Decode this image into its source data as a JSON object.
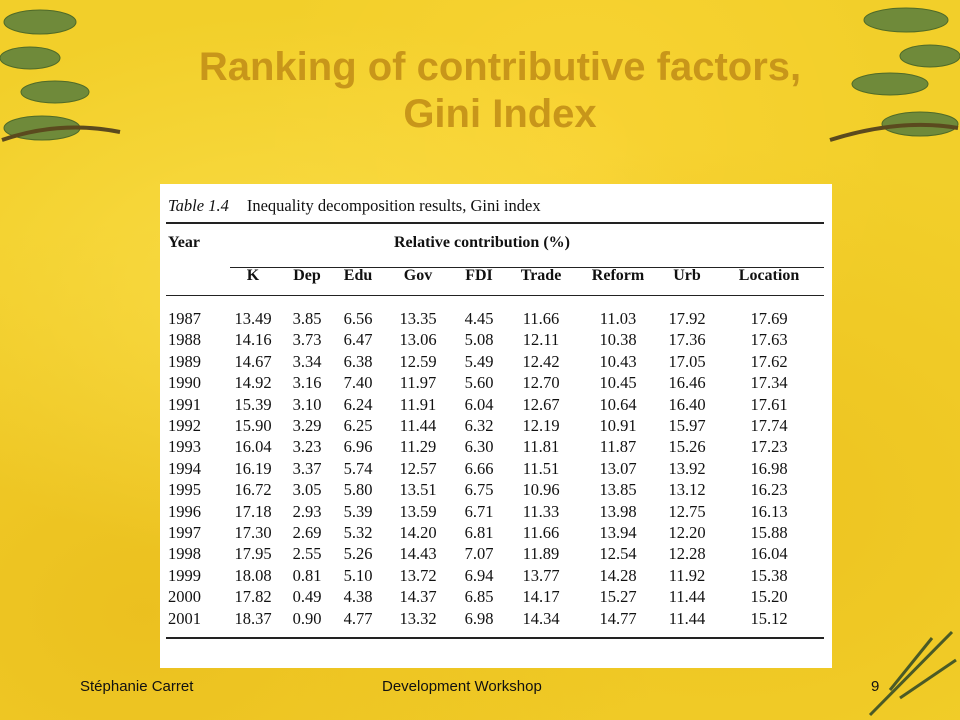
{
  "slide": {
    "title_line1": "Ranking of contributive factors,",
    "title_line2": "Gini Index"
  },
  "table": {
    "caption_number": "Table 1.4",
    "caption_text": "Inequality decomposition results, Gini index",
    "year_header": "Year",
    "group_header": "Relative contribution (%)",
    "columns": [
      "K",
      "Dep",
      "Edu",
      "Gov",
      "FDI",
      "Trade",
      "Reform",
      "Urb",
      "Location"
    ],
    "rows": [
      [
        "1987",
        "13.49",
        "3.85",
        "6.56",
        "13.35",
        "4.45",
        "11.66",
        "11.03",
        "17.92",
        "17.69"
      ],
      [
        "1988",
        "14.16",
        "3.73",
        "6.47",
        "13.06",
        "5.08",
        "12.11",
        "10.38",
        "17.36",
        "17.63"
      ],
      [
        "1989",
        "14.67",
        "3.34",
        "6.38",
        "12.59",
        "5.49",
        "12.42",
        "10.43",
        "17.05",
        "17.62"
      ],
      [
        "1990",
        "14.92",
        "3.16",
        "7.40",
        "11.97",
        "5.60",
        "12.70",
        "10.45",
        "16.46",
        "17.34"
      ],
      [
        "1991",
        "15.39",
        "3.10",
        "6.24",
        "11.91",
        "6.04",
        "12.67",
        "10.64",
        "16.40",
        "17.61"
      ],
      [
        "1992",
        "15.90",
        "3.29",
        "6.25",
        "11.44",
        "6.32",
        "12.19",
        "10.91",
        "15.97",
        "17.74"
      ],
      [
        "1993",
        "16.04",
        "3.23",
        "6.96",
        "11.29",
        "6.30",
        "11.81",
        "11.87",
        "15.26",
        "17.23"
      ],
      [
        "1994",
        "16.19",
        "3.37",
        "5.74",
        "12.57",
        "6.66",
        "11.51",
        "13.07",
        "13.92",
        "16.98"
      ],
      [
        "1995",
        "16.72",
        "3.05",
        "5.80",
        "13.51",
        "6.75",
        "10.96",
        "13.85",
        "13.12",
        "16.23"
      ],
      [
        "1996",
        "17.18",
        "2.93",
        "5.39",
        "13.59",
        "6.71",
        "11.33",
        "13.98",
        "12.75",
        "16.13"
      ],
      [
        "1997",
        "17.30",
        "2.69",
        "5.32",
        "14.20",
        "6.81",
        "11.66",
        "13.94",
        "12.20",
        "15.88"
      ],
      [
        "1998",
        "17.95",
        "2.55",
        "5.26",
        "14.43",
        "7.07",
        "11.89",
        "12.54",
        "12.28",
        "16.04"
      ],
      [
        "1999",
        "18.08",
        "0.81",
        "5.10",
        "13.72",
        "6.94",
        "13.77",
        "14.28",
        "11.92",
        "15.38"
      ],
      [
        "2000",
        "17.82",
        "0.49",
        "4.38",
        "14.37",
        "6.85",
        "14.17",
        "15.27",
        "11.44",
        "15.20"
      ],
      [
        "2001",
        "18.37",
        "0.90",
        "4.77",
        "13.32",
        "6.98",
        "14.34",
        "14.77",
        "11.44",
        "15.12"
      ]
    ]
  },
  "footer": {
    "author": "Stéphanie Carret",
    "event": "Development Workshop",
    "page": "9"
  },
  "colors": {
    "background": "#f2cf2a",
    "title": "#c8961a",
    "foliage": "#6f8a3a"
  }
}
